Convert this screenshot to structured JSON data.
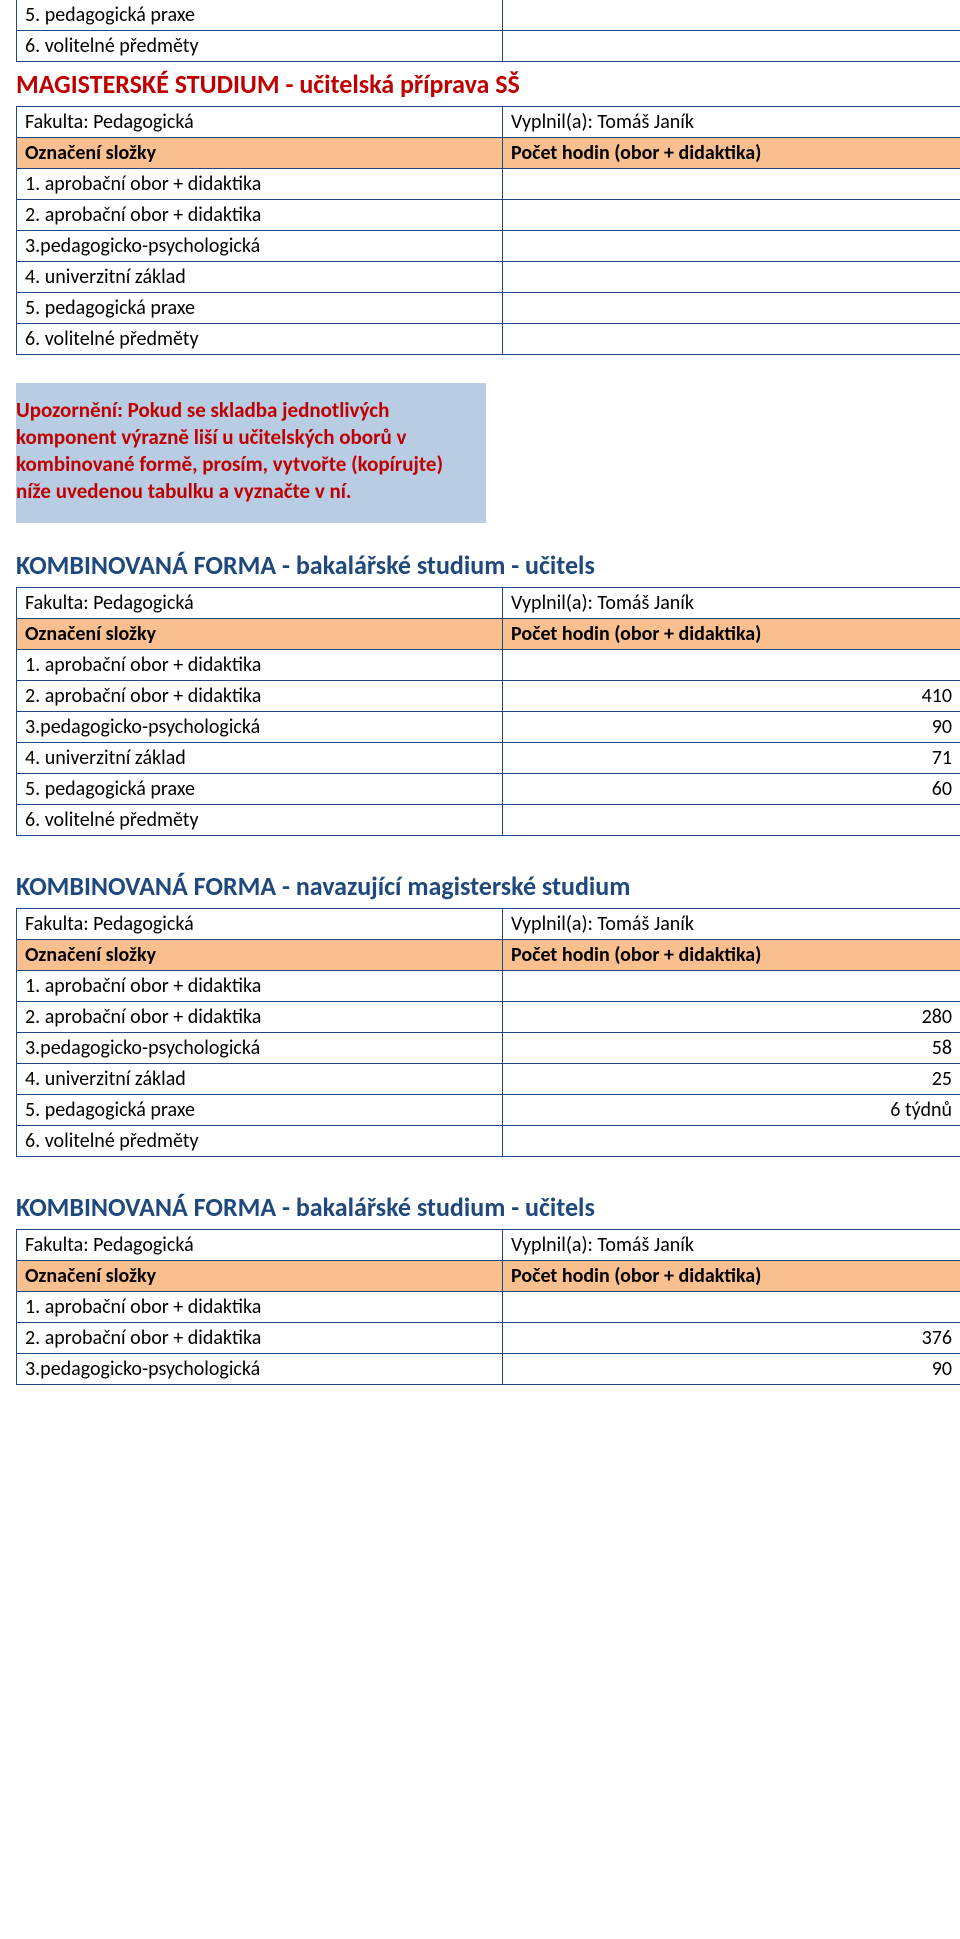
{
  "colors": {
    "border": "#1f497d",
    "header_bg": "#fabf8f",
    "notice_bg": "#b8cce4",
    "heading_red": "#c00000",
    "heading_blue": "#1f497d"
  },
  "fragment_top": {
    "rows": [
      {
        "label": "5. pedagogická praxe",
        "value": ""
      },
      {
        "label": "6. volitelné předměty",
        "value": ""
      }
    ]
  },
  "section_ms": {
    "title": "MAGISTERSKÉ STUDIUM - učitelská příprava SŠ",
    "meta": {
      "faculty_label": "Fakulta: Pedagogická",
      "filled_label": "Vyplnil(a): Tomáš Janík"
    },
    "header": {
      "col1": "Označení složky",
      "col2": "Počet hodin (obor + didaktika)"
    },
    "rows": [
      {
        "label": "1. aprobační obor + didaktika",
        "value": ""
      },
      {
        "label": "2. aprobační obor + didaktika",
        "value": ""
      },
      {
        "label": "3.pedagogicko-psychologická",
        "value": ""
      },
      {
        "label": "4. univerzitní základ",
        "value": ""
      },
      {
        "label": "5. pedagogická praxe",
        "value": ""
      },
      {
        "label": "6. volitelné předměty",
        "value": ""
      }
    ]
  },
  "notice": "Upozornění: Pokud se skladba jednotlivých komponent výrazně liší u učitelských oborů v kombinované formě, prosím, vytvořte (kopírujte) níže uvedenou tabulku a vyznačte v ní.",
  "section_kb1": {
    "title": "KOMBINOVANÁ FORMA - bakalářské studium - učitels",
    "meta": {
      "faculty_label": "Fakulta: Pedagogická",
      "filled_label": "Vyplnil(a): Tomáš Janík"
    },
    "header": {
      "col1": "Označení složky",
      "col2": "Počet hodin (obor + didaktika)"
    },
    "rows": [
      {
        "label": "1. aprobační obor + didaktika",
        "value": ""
      },
      {
        "label": "2. aprobační obor + didaktika",
        "value": "410"
      },
      {
        "label": "3.pedagogicko-psychologická",
        "value": "90"
      },
      {
        "label": "4. univerzitní základ",
        "value": "71"
      },
      {
        "label": "5. pedagogická praxe",
        "value": "60"
      },
      {
        "label": "6. volitelné předměty",
        "value": ""
      }
    ]
  },
  "section_km": {
    "title": "KOMBINOVANÁ FORMA - navazující magisterské studium",
    "meta": {
      "faculty_label": "Fakulta: Pedagogická",
      "filled_label": "Vyplnil(a): Tomáš Janík"
    },
    "header": {
      "col1": "Označení složky",
      "col2": "Počet hodin (obor + didaktika)"
    },
    "rows": [
      {
        "label": "1. aprobační obor + didaktika",
        "value": ""
      },
      {
        "label": "2. aprobační obor + didaktika",
        "value": "280"
      },
      {
        "label": "3.pedagogicko-psychologická",
        "value": "58"
      },
      {
        "label": "4. univerzitní základ",
        "value": "25"
      },
      {
        "label": "5. pedagogická praxe",
        "value": "6 týdnů"
      },
      {
        "label": "6. volitelné předměty",
        "value": ""
      }
    ]
  },
  "section_kb2": {
    "title": "KOMBINOVANÁ FORMA - bakalářské studium - učitels",
    "meta": {
      "faculty_label": "Fakulta: Pedagogická",
      "filled_label": "Vyplnil(a): Tomáš Janík"
    },
    "header": {
      "col1": "Označení složky",
      "col2": "Počet hodin (obor + didaktika)"
    },
    "rows": [
      {
        "label": "1. aprobační obor + didaktika",
        "value": ""
      },
      {
        "label": "2. aprobační obor + didaktika",
        "value": "376"
      },
      {
        "label": "3.pedagogicko-psychologická",
        "value": "90"
      }
    ]
  }
}
